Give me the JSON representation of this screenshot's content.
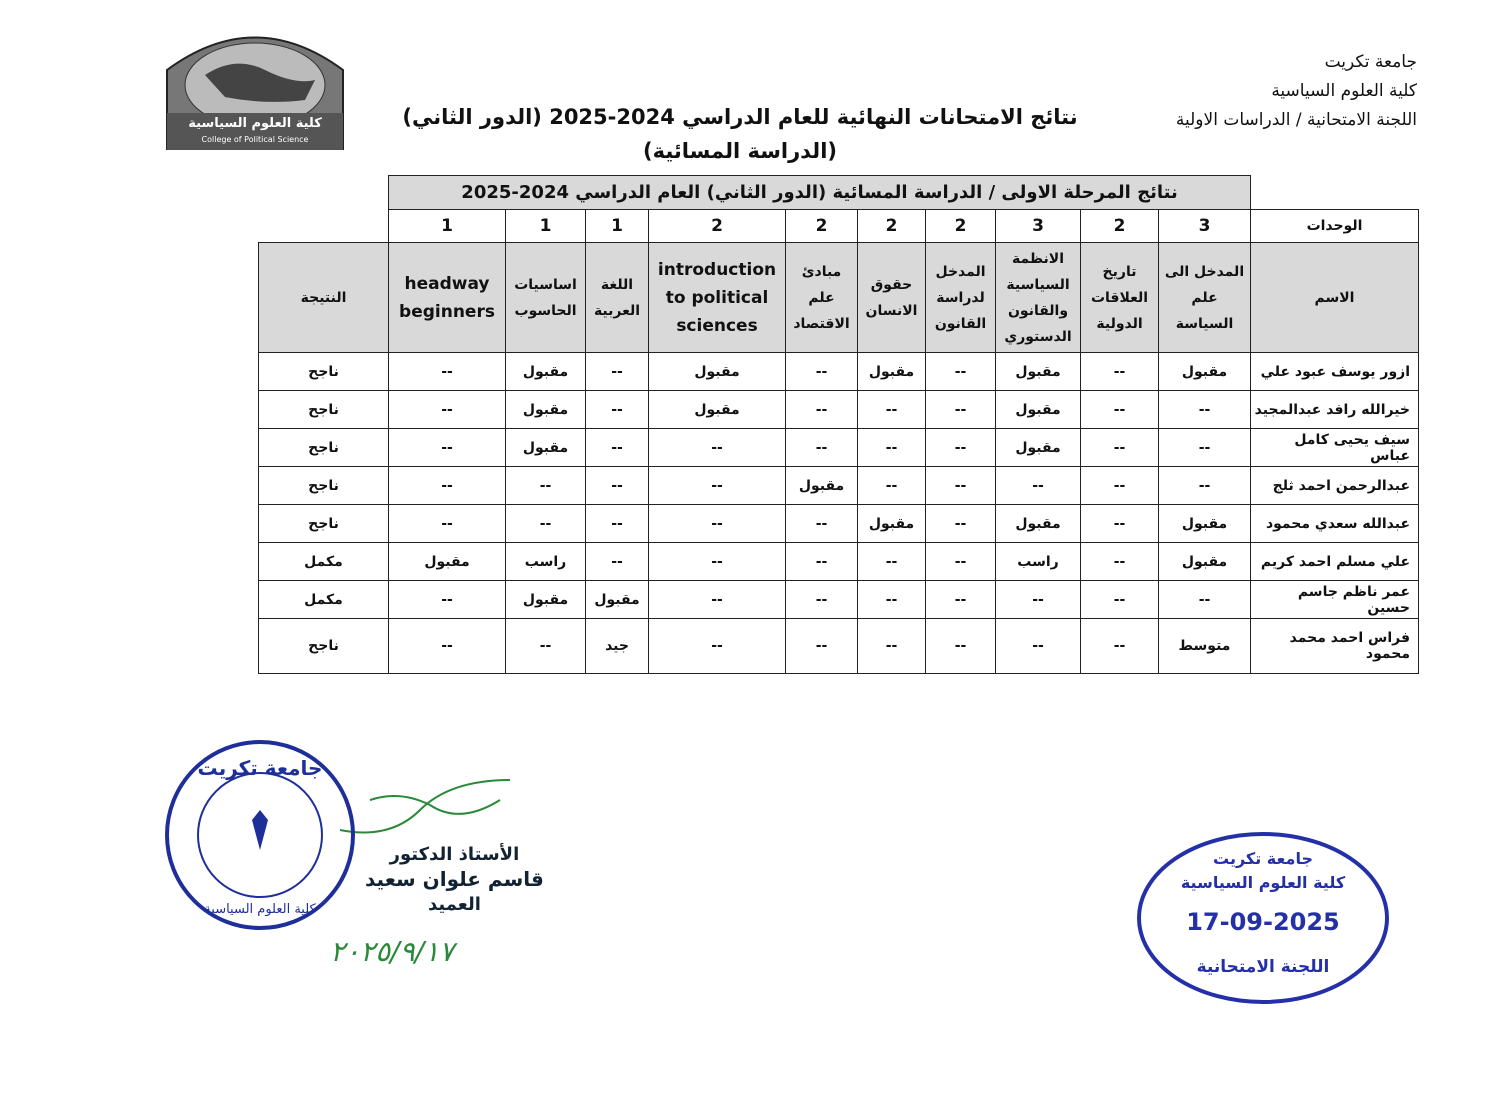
{
  "header": {
    "university": "جامعة تكريت",
    "college": "كلية العلوم السياسية",
    "committee": "اللجنة الامتحانية / الدراسات الاولية",
    "logo_arabic": "كلية العلوم السياسية",
    "logo_english": "College of Political Science"
  },
  "title": "نتائج الامتحانات النهائية للعام الدراسي 2024-2025 (الدور الثاني)",
  "subtitle": "(الدراسة المسائية)",
  "table": {
    "caption": "نتائج المرحلة الاولى / الدراسة المسائية (الدور الثاني) العام الدراسي 2024-2025",
    "units_label": "الوحدات",
    "name_label": "الاسم",
    "result_label": "النتيجة",
    "units": [
      3,
      2,
      3,
      2,
      2,
      2,
      2,
      1,
      1,
      1
    ],
    "subjects": [
      "المدخل الى علم السياسة",
      "تاريخ العلاقات الدولية",
      "الانظمة السياسية والقانون الدستوري",
      "المدخل لدراسة القانون",
      "حقوق الانسان",
      "مبادئ علم الاقتصاد",
      "introduction to political sciences",
      "اللغة العربية",
      "اساسيات الحاسوب",
      "headway beginners"
    ],
    "rows": [
      {
        "name": "ازور يوسف عبود علي",
        "grades": [
          "مقبول",
          "--",
          "مقبول",
          "--",
          "مقبول",
          "--",
          "مقبول",
          "--",
          "مقبول",
          "--"
        ],
        "result": "ناجح"
      },
      {
        "name": "خيرالله رافد عبدالمجيد",
        "grades": [
          "--",
          "--",
          "مقبول",
          "--",
          "--",
          "--",
          "مقبول",
          "--",
          "مقبول",
          "--"
        ],
        "result": "ناجح"
      },
      {
        "name": "سيف يحيى كامل عباس",
        "grades": [
          "--",
          "--",
          "مقبول",
          "--",
          "--",
          "--",
          "--",
          "--",
          "مقبول",
          "--"
        ],
        "result": "ناجح"
      },
      {
        "name": "عبدالرحمن احمد ثلج",
        "grades": [
          "--",
          "--",
          "--",
          "--",
          "--",
          "مقبول",
          "--",
          "--",
          "--",
          "--"
        ],
        "result": "ناجح"
      },
      {
        "name": "عبدالله سعدي محمود",
        "grades": [
          "مقبول",
          "--",
          "مقبول",
          "--",
          "مقبول",
          "--",
          "--",
          "--",
          "--",
          "--"
        ],
        "result": "ناجح"
      },
      {
        "name": "علي مسلم احمد كريم",
        "grades": [
          "مقبول",
          "--",
          "راسب",
          "--",
          "--",
          "--",
          "--",
          "--",
          "راسب",
          "مقبول"
        ],
        "result": "مكمل"
      },
      {
        "name": "عمر ناظم جاسم حسين",
        "grades": [
          "--",
          "--",
          "--",
          "--",
          "--",
          "--",
          "--",
          "مقبول",
          "مقبول",
          "--"
        ],
        "result": "مكمل"
      },
      {
        "name": "فراس احمد محمد محمود",
        "grades": [
          "متوسط",
          "--",
          "--",
          "--",
          "--",
          "--",
          "--",
          "جيد",
          "--",
          "--"
        ],
        "result": "ناجح"
      }
    ]
  },
  "signature": {
    "rank": "الأستاذ الدكتور",
    "name": "قاسم علوان سعيد",
    "position": "العميد",
    "date": "٢٠٢٥/٩/١٧"
  },
  "stamp_left": {
    "university": "جامعة تكريت",
    "college": "كلية العلوم السياسية"
  },
  "stamp_right": {
    "university": "جامعة تكريت",
    "college": "كلية العلوم السياسية",
    "date": "17-09-2025",
    "committee": "اللجنة الامتحانية"
  }
}
